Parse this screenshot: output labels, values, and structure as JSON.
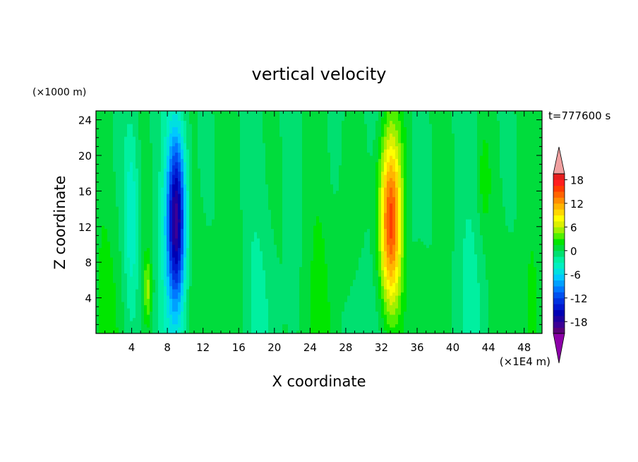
{
  "chart_data": {
    "type": "heatmap",
    "title": "vertical velocity",
    "xlabel": "X coordinate",
    "ylabel": "Z coordinate",
    "x_unit": "(×1E4 m)",
    "y_unit": "(×1000 m)",
    "time_label": "t=777600 s",
    "xlim": [
      0,
      50
    ],
    "ylim": [
      0,
      25
    ],
    "x_ticks": [
      4,
      8,
      12,
      16,
      20,
      24,
      28,
      32,
      36,
      40,
      44,
      48
    ],
    "y_ticks": [
      4,
      8,
      12,
      16,
      20,
      24
    ],
    "colorbar": {
      "levels": [
        -21,
        -19.5,
        -18,
        -16.5,
        -15,
        -13.5,
        -12,
        -10.5,
        -9,
        -7.5,
        -6,
        -4.5,
        -3,
        -1.5,
        0,
        1.5,
        3,
        4.5,
        6,
        7.5,
        9,
        10.5,
        12,
        13.5,
        15,
        16.5,
        18,
        19.5
      ],
      "tick_labels": [
        "-18",
        "-12",
        "-6",
        "0",
        "6",
        "12",
        "18"
      ],
      "tick_values": [
        -18,
        -12,
        -6,
        0,
        6,
        12,
        18
      ],
      "colors": [
        "#5a007a",
        "#3c0096",
        "#1e00a0",
        "#0000b4",
        "#0018d0",
        "#0032e0",
        "#0050f0",
        "#0078ff",
        "#00a0ff",
        "#00c8ff",
        "#00e0e0",
        "#00f0c0",
        "#00f0a0",
        "#00e070",
        "#00dc3c",
        "#00e600",
        "#50f000",
        "#a0f000",
        "#dcf000",
        "#ffff00",
        "#ffd700",
        "#ffb400",
        "#ff8c00",
        "#ff6400",
        "#ff3c00",
        "#ff1e1e",
        "#e61e1e"
      ],
      "under_color": "#8c00a8",
      "over_color": "#f0a0a0"
    },
    "features": [
      {
        "name": "downdraft",
        "x": 9,
        "z": 13,
        "sx": 0.75,
        "sz": 7,
        "value": -18
      },
      {
        "name": "updraft",
        "x": 33,
        "z": 12.5,
        "sx": 0.9,
        "sz": 7,
        "value": 16
      },
      {
        "name": "weak-downdraft",
        "x": 4,
        "z": 13,
        "sx": 0.6,
        "sz": 8,
        "value": -4
      },
      {
        "name": "weak-updraft",
        "x": 5.8,
        "z": 5,
        "sx": 0.35,
        "sz": 3,
        "value": 5
      },
      {
        "name": "weak-updraft",
        "x": 28,
        "z": 10,
        "sx": 0.9,
        "sz": 9,
        "value": 1.5
      },
      {
        "name": "weak-downdraft",
        "x": 35,
        "z": 8,
        "sx": 0.8,
        "sz": 8,
        "value": -2
      },
      {
        "name": "weak-updraft",
        "x": 43.5,
        "z": 17,
        "sx": 0.5,
        "sz": 4,
        "value": 2
      }
    ]
  }
}
